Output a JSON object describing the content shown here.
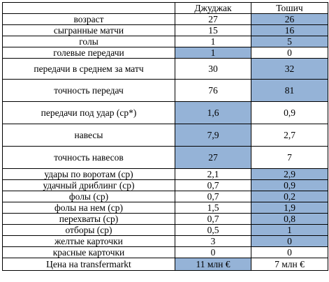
{
  "table": {
    "headers": [
      "",
      "Джуджак",
      "Тошич"
    ],
    "highlight_color": "#95b3d7",
    "rows": [
      {
        "label": "возраст",
        "p1": "27",
        "p2": "26",
        "hl": "p2",
        "size": "s"
      },
      {
        "label": "сыгранные матчи",
        "p1": "15",
        "p2": "16",
        "hl": "p2",
        "size": "s"
      },
      {
        "label": "голы",
        "p1": "1",
        "p2": "5",
        "hl": "p2",
        "size": "s"
      },
      {
        "label": "голевые передачи",
        "p1": "1",
        "p2": "0",
        "hl": "p1",
        "size": "s"
      },
      {
        "label": "передачи в среднем за матч",
        "p1": "30",
        "p2": "32",
        "hl": "p2",
        "size": "l"
      },
      {
        "label": "точность передач",
        "p1": "76",
        "p2": "81",
        "hl": "p2",
        "size": "xl"
      },
      {
        "label": "передачи под удар (ср*)",
        "p1": "1,6",
        "p2": "0,9",
        "hl": "p1",
        "size": "xl"
      },
      {
        "label": "навесы",
        "p1": "7,9",
        "p2": "2,7",
        "hl": "p1",
        "size": "xl"
      },
      {
        "label": "точность навесов",
        "p1": "27",
        "p2": "7",
        "hl": "p1",
        "size": "xl"
      },
      {
        "label": "удары по воротам (ср)",
        "p1": "2,1",
        "p2": "2,9",
        "hl": "p2",
        "size": "s"
      },
      {
        "label": "удачный дриблинг (ср)",
        "p1": "0,7",
        "p2": "0,9",
        "hl": "p2",
        "size": "s"
      },
      {
        "label": "фолы (ср)",
        "p1": "0,7",
        "p2": "0,2",
        "hl": "p2",
        "size": "s"
      },
      {
        "label": "фолы на нем (ср)",
        "p1": "1,5",
        "p2": "1,9",
        "hl": "p2",
        "size": "s"
      },
      {
        "label": "перехваты (ср)",
        "p1": "0,7",
        "p2": "0,8",
        "hl": "p2",
        "size": "s"
      },
      {
        "label": "отборы (ср)",
        "p1": "0,5",
        "p2": "1",
        "hl": "p2",
        "size": "s"
      },
      {
        "label": "желтые карточки",
        "p1": "3",
        "p2": "0",
        "hl": "p2",
        "size": "s"
      },
      {
        "label": "красные карточки",
        "p1": "0",
        "p2": "0",
        "hl": "none",
        "size": "s"
      },
      {
        "label": "Цена на transfermarkt",
        "p1": "11 млн €",
        "p2": "7 млн €",
        "hl": "p1",
        "size": "m"
      }
    ]
  }
}
